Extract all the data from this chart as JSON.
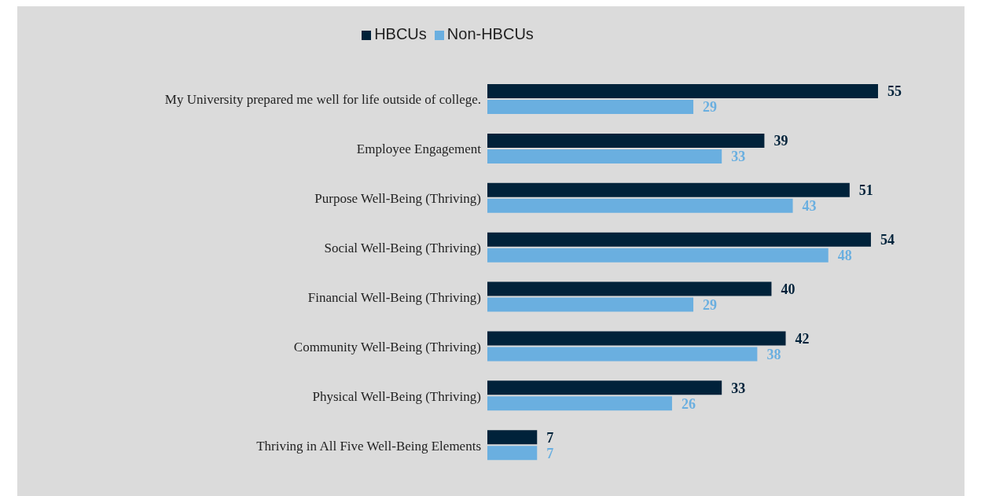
{
  "chart_data": {
    "type": "bar",
    "orientation": "horizontal",
    "categories": [
      "My University prepared me well for life outside of college.",
      "Employee Engagement",
      "Purpose Well-Being (Thriving)",
      "Social Well-Being (Thriving)",
      "Financial Well-Being (Thriving)",
      "Community Well-Being (Thriving)",
      "Physical Well-Being (Thriving)",
      "Thriving in All Five Well-Being Elements"
    ],
    "series": [
      {
        "name": "HBCUs",
        "color": "#00223a",
        "values": [
          55,
          39,
          51,
          54,
          40,
          42,
          33,
          7
        ]
      },
      {
        "name": "Non-HBCUs",
        "color": "#6aafe0",
        "values": [
          29,
          33,
          43,
          48,
          29,
          38,
          26,
          7
        ]
      }
    ],
    "data_labels": true,
    "legend": "top",
    "grid": false
  }
}
